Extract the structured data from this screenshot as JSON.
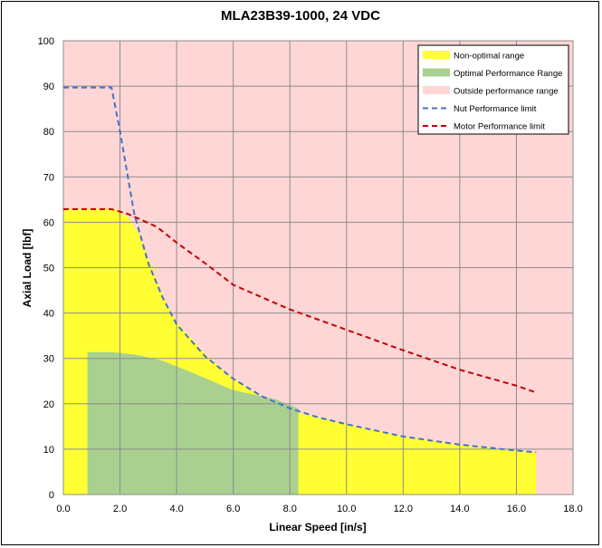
{
  "chart_data": {
    "type": "area",
    "title": "MLA23B39-1000, 24 VDC",
    "xlabel": "Linear Speed [in/s]",
    "ylabel": "Axial Load [lbf]",
    "xlim": [
      0,
      18
    ],
    "ylim": [
      0,
      100
    ],
    "x_ticks": [
      "0.0",
      "2.0",
      "4.0",
      "6.0",
      "8.0",
      "10.0",
      "12.0",
      "14.0",
      "16.0",
      "18.0"
    ],
    "y_ticks": [
      "0",
      "10",
      "20",
      "30",
      "40",
      "50",
      "60",
      "70",
      "80",
      "90",
      "100"
    ],
    "grid": true,
    "legend_position": "top-right",
    "background_color": "#ffd6d6",
    "series": [
      {
        "name": "Non-optimal range",
        "kind": "area",
        "color": "#ffff33",
        "x": [
          0,
          1.8,
          2.3,
          2.7,
          3.0,
          3.5,
          4.0,
          5.0,
          6.0,
          7.0,
          8.3,
          8.3,
          10.0,
          12.0,
          14.0,
          16.0,
          16.7,
          16.7,
          0
        ],
        "y": [
          63,
          63,
          61,
          57,
          52,
          44,
          38,
          31,
          25.5,
          21.5,
          18.5,
          18,
          15.5,
          12.8,
          11,
          9.7,
          9.3,
          0,
          0
        ]
      },
      {
        "name": "Optimal Performance Range",
        "kind": "area",
        "color": "#a9d08e",
        "x": [
          0.85,
          0.85,
          1.7,
          2.6,
          3.5,
          4.5,
          6.0,
          7.5,
          8.3,
          8.3
        ],
        "y": [
          0,
          31.4,
          31.4,
          30.8,
          29.5,
          27,
          23,
          21,
          19,
          0
        ]
      },
      {
        "name": "Outside performance range",
        "kind": "area",
        "color": "#ffd6d6"
      },
      {
        "name": "Nut Performance limit",
        "kind": "line",
        "color": "#4472c4",
        "dash": "dashed",
        "x": [
          0,
          1.7,
          2.0,
          2.5,
          3.0,
          3.5,
          4.0,
          5.0,
          6.0,
          7.0,
          8.0,
          9.0,
          10.0,
          12.0,
          14.0,
          16.0,
          16.7
        ],
        "y": [
          89.7,
          89.7,
          80,
          62,
          51,
          43.5,
          37.5,
          30.5,
          25.5,
          21.7,
          19,
          17,
          15.5,
          12.8,
          11,
          9.7,
          9.3
        ]
      },
      {
        "name": "Motor Performance limit",
        "kind": "line",
        "color": "#c00000",
        "dash": "dashed",
        "x": [
          0,
          1.7,
          2.3,
          3.3,
          4.0,
          5.0,
          6.0,
          8.0,
          10.0,
          12.0,
          14.0,
          16.0,
          16.7
        ],
        "y": [
          62.9,
          62.9,
          61.8,
          59,
          55.5,
          51,
          46.2,
          40.8,
          36.3,
          31.8,
          27.5,
          24,
          22.5
        ]
      }
    ]
  }
}
